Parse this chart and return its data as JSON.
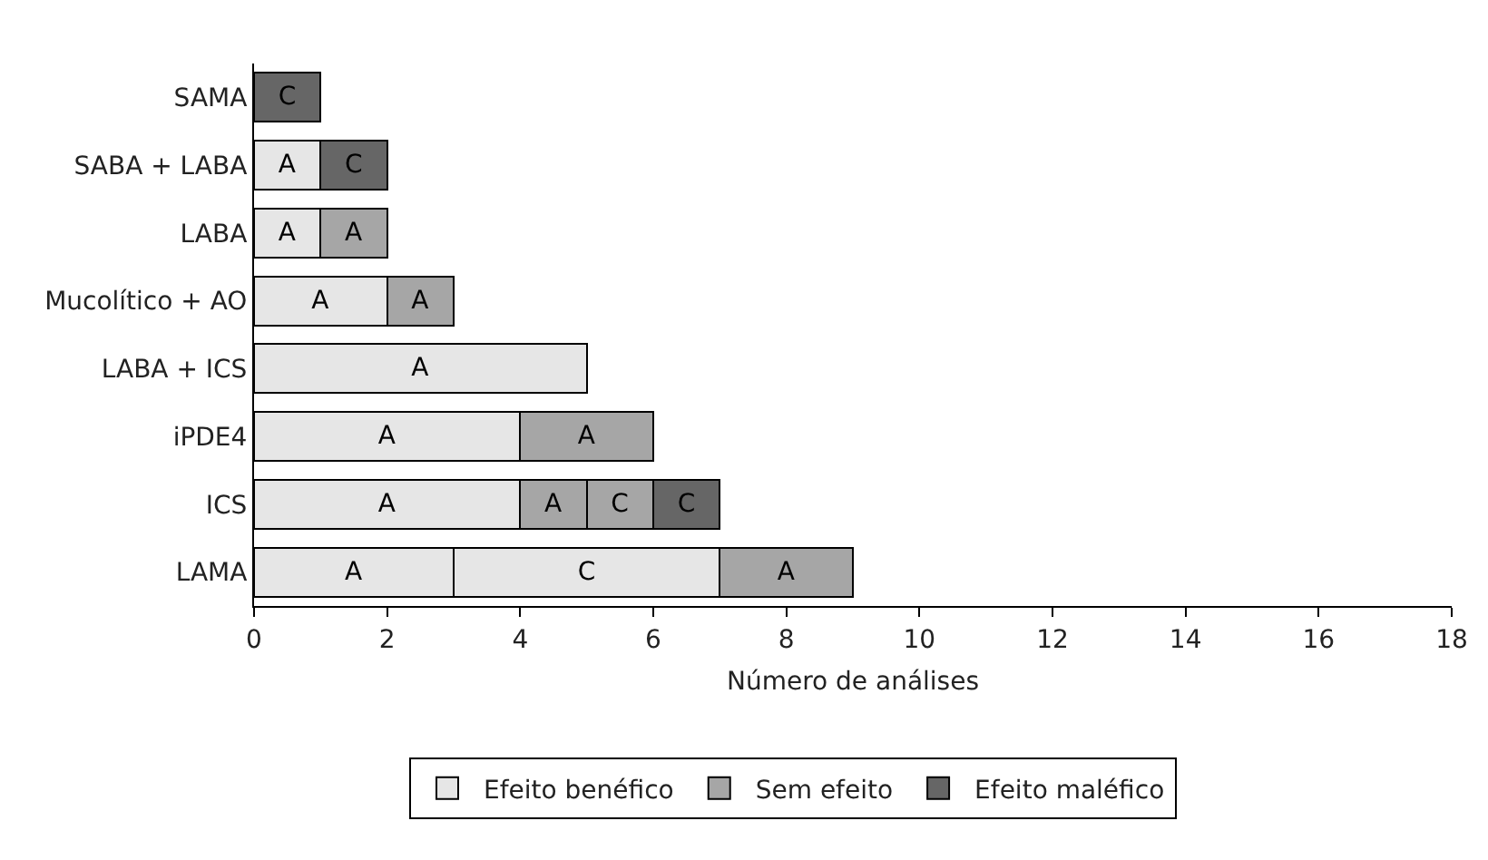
{
  "chart_data": {
    "type": "bar",
    "orientation": "horizontal",
    "stacked": true,
    "categories": [
      "SAMA",
      "SABA + LABA",
      "LABA",
      "Mucolítico + AO",
      "LABA + ICS",
      "iPDE4",
      "ICS",
      "LAMA"
    ],
    "series": [
      {
        "name": "Efeito benéfico",
        "color": "#e6e6e6",
        "values": [
          null,
          1,
          1,
          2,
          5,
          4,
          4,
          3
        ],
        "value_labels": [
          null,
          "A",
          "A",
          "A",
          "A",
          "A",
          "A",
          "A"
        ]
      },
      {
        "color": "#e6e6e6",
        "values": [
          null,
          null,
          null,
          null,
          null,
          null,
          null,
          4
        ],
        "value_labels": [
          null,
          null,
          null,
          null,
          null,
          null,
          null,
          "C"
        ]
      },
      {
        "name": "Sem efeito",
        "color": "#a6a6a6",
        "values": [
          null,
          null,
          1,
          1,
          null,
          2,
          1,
          2
        ],
        "value_labels": [
          null,
          null,
          "A",
          "A",
          null,
          "A",
          "A",
          "A"
        ]
      },
      {
        "color": "#a6a6a6",
        "values": [
          null,
          null,
          null,
          null,
          null,
          null,
          1,
          null
        ],
        "value_labels": [
          null,
          null,
          null,
          null,
          null,
          null,
          "C",
          null
        ]
      },
      {
        "name": "Efeito maléfico",
        "color": "#666666",
        "values": [
          1,
          1,
          null,
          null,
          null,
          null,
          1,
          null
        ],
        "value_labels": [
          "C",
          "C",
          null,
          null,
          null,
          null,
          "C",
          null
        ]
      }
    ],
    "xlim": [
      0,
      18
    ],
    "xticks": [
      0,
      2,
      4,
      6,
      8,
      10,
      12,
      14,
      16,
      18
    ],
    "xlabel": "Número de análises",
    "legend": "bottom"
  }
}
